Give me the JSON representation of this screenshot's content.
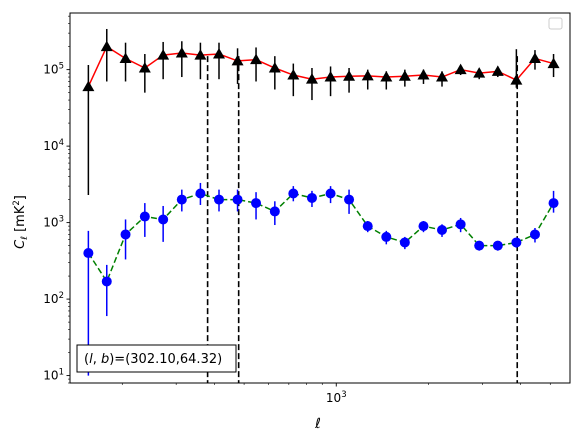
{
  "chart_data": {
    "type": "scatter",
    "xlabel": "ℓ",
    "ylabel": "C_ℓ  [mK²]",
    "xscale": "log",
    "yscale": "log",
    "xlim": [
      135,
      5800
    ],
    "ylim": [
      8,
      550000
    ],
    "x_tick_labels": [
      {
        "value": 1000,
        "mantissa": "10",
        "exp": "3"
      }
    ],
    "y_tick_labels": [
      {
        "value": 10,
        "mantissa": "10",
        "exp": "1"
      },
      {
        "value": 100,
        "mantissa": "10",
        "exp": "2"
      },
      {
        "value": 1000,
        "mantissa": "10",
        "exp": "3"
      },
      {
        "value": 10000,
        "mantissa": "10",
        "exp": "4"
      },
      {
        "value": 100000,
        "mantissa": "10",
        "exp": "5"
      }
    ],
    "legend": {
      "position": "top-right",
      "entries": []
    },
    "annotation": "(l, b)=(302.10,64.32)",
    "vlines": [
      380,
      480,
      3900
    ],
    "series": [
      {
        "color": "#ff0000",
        "line_style": "solid",
        "marker": "triangle",
        "marker_color": "#000000",
        "errorbar_color": "#000000",
        "x": [
          155,
          178,
          205,
          237,
          272,
          313,
          360,
          414,
          476,
          547,
          630,
          724,
          833,
          958,
          1101,
          1267,
          1457,
          1675,
          1927,
          2215,
          2548,
          2930,
          3370,
          3875,
          4457,
          5125
        ],
        "y": [
          60000,
          200000,
          140000,
          105000,
          155000,
          165000,
          155000,
          160000,
          130000,
          135000,
          105000,
          85000,
          75000,
          80000,
          82000,
          83000,
          80000,
          82000,
          85000,
          80000,
          100000,
          90000,
          95000,
          73000,
          140000,
          120000
        ],
        "yerr_low": [
          2300,
          70000,
          70000,
          50000,
          75000,
          80000,
          75000,
          75000,
          65000,
          70000,
          55000,
          45000,
          40000,
          45000,
          50000,
          55000,
          55000,
          60000,
          65000,
          60000,
          85000,
          75000,
          80000,
          58000,
          100000,
          80000
        ],
        "yerr_high": [
          115000,
          340000,
          225000,
          160000,
          230000,
          235000,
          225000,
          225000,
          190000,
          195000,
          150000,
          120000,
          105000,
          110000,
          105000,
          100000,
          95000,
          100000,
          100000,
          95000,
          115000,
          100000,
          110000,
          185000,
          180000,
          160000
        ]
      },
      {
        "color": "#008000",
        "line_style": "dashed",
        "marker": "circle",
        "marker_color": "#0000ff",
        "errorbar_color": "#0000ff",
        "x": [
          155,
          178,
          205,
          237,
          272,
          313,
          360,
          414,
          476,
          547,
          630,
          724,
          833,
          958,
          1101,
          1267,
          1457,
          1675,
          1927,
          2215,
          2548,
          2930,
          3370,
          3875,
          4457,
          5125
        ],
        "y": [
          400,
          170,
          700,
          1200,
          1100,
          2000,
          2400,
          2000,
          2000,
          1800,
          1400,
          2400,
          2100,
          2400,
          2000,
          900,
          650,
          550,
          900,
          800,
          950,
          500,
          500,
          550,
          700,
          1800
        ],
        "yerr_low": [
          10,
          60,
          330,
          650,
          560,
          1400,
          1700,
          1400,
          1400,
          1100,
          930,
          1900,
          1600,
          1800,
          1300,
          750,
          520,
          450,
          750,
          650,
          750,
          430,
          430,
          470,
          550,
          1350
        ],
        "yerr_high": [
          780,
          280,
          1100,
          1800,
          1650,
          2700,
          3300,
          2700,
          2700,
          2500,
          1900,
          3000,
          2600,
          3000,
          2700,
          1050,
          780,
          650,
          1050,
          950,
          1150,
          570,
          570,
          630,
          850,
          2600
        ]
      }
    ]
  }
}
